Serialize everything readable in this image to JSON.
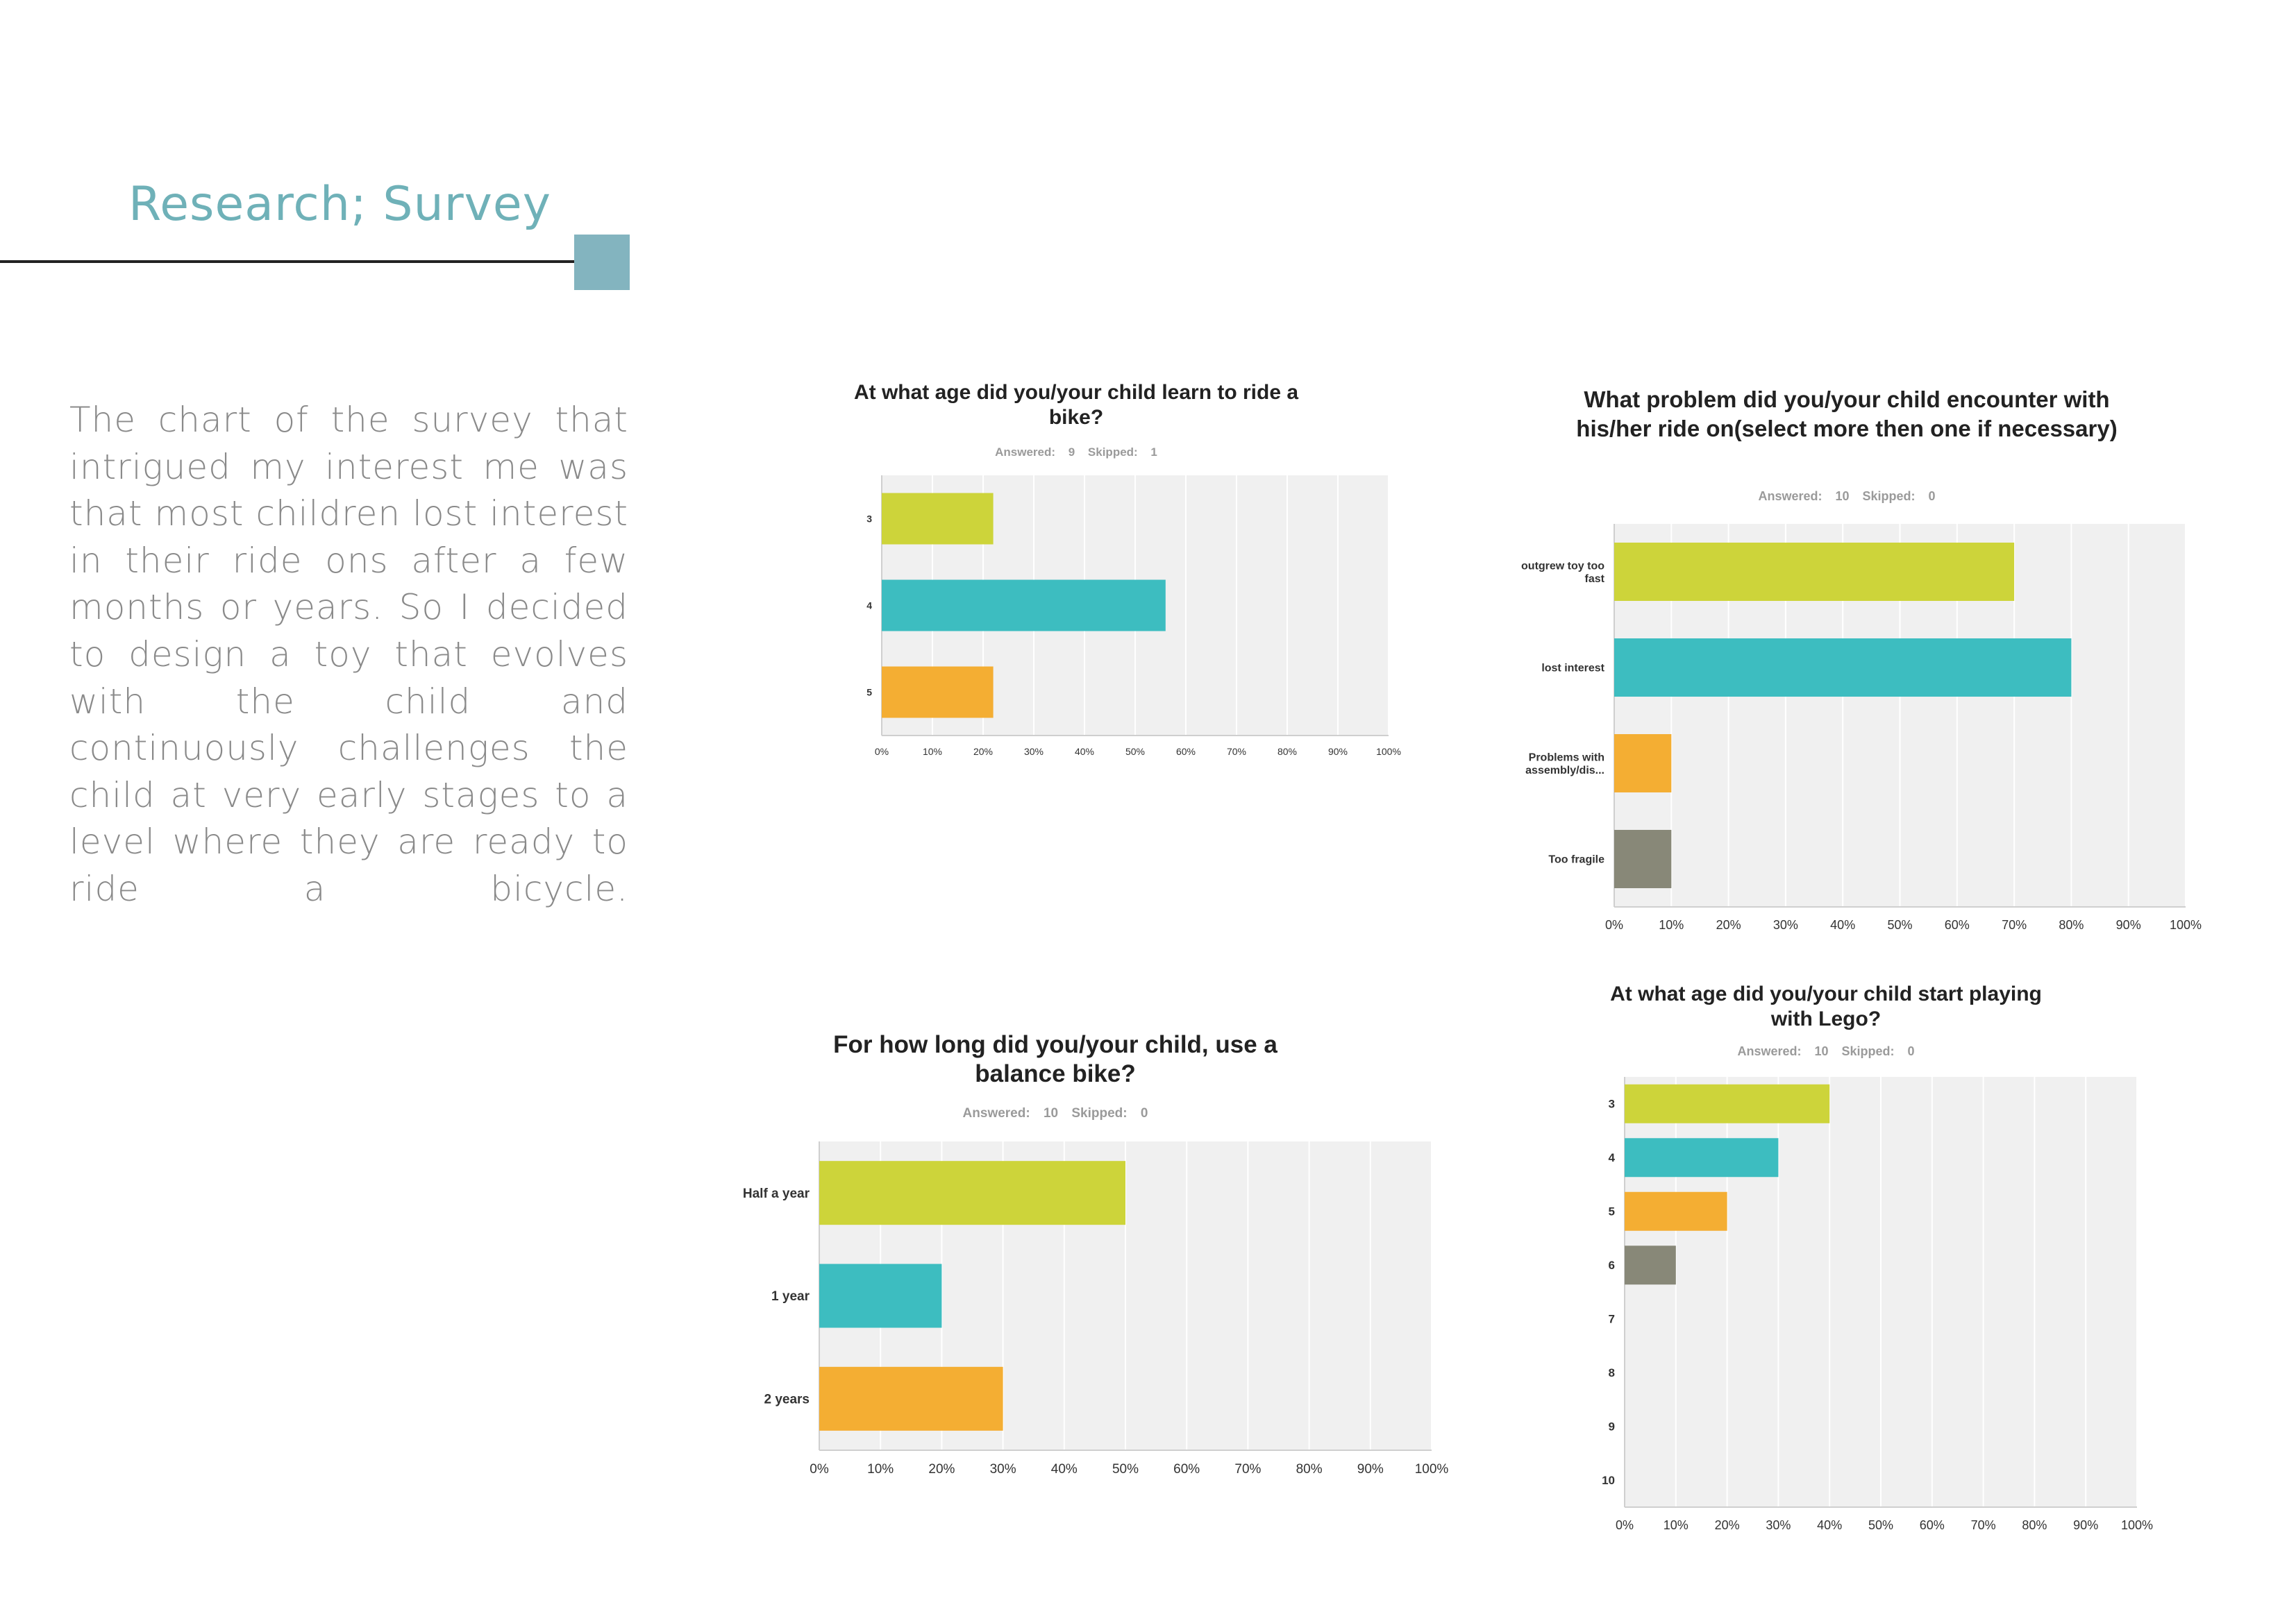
{
  "page": {
    "heading": "Research; Survey",
    "intro": "The chart of the survey that intrigued my interest me was that most children lost interest in their ride ons after a few months or years. So I decided to design a toy that evolves with the child and continuously challenges the child at very early stages to a level where they are ready to ride a bicycle."
  },
  "colors": {
    "heading": "#6fb1b8",
    "accent_square": "#83b4bf",
    "plot_bg": "#f0f0f0",
    "bar_colors": [
      "#cdd43a",
      "#3dbdc0",
      "#f4ae33",
      "#888878"
    ]
  },
  "chart_data": [
    {
      "type": "bar",
      "orientation": "horizontal",
      "title": "At what age did you/your child learn to ride a bike?",
      "subtitle": "Answered: 9    Skipped: 1",
      "categories": [
        "3",
        "4",
        "5"
      ],
      "values": [
        22,
        56,
        22
      ],
      "xlim": [
        0,
        100
      ],
      "x_ticks": [
        "0%",
        "10%",
        "20%",
        "30%",
        "40%",
        "50%",
        "60%",
        "70%",
        "80%",
        "90%",
        "100%"
      ],
      "grid": true
    },
    {
      "type": "bar",
      "orientation": "horizontal",
      "title": "What problem did you/your child encounter with his/her ride on(select more then one if necessary)",
      "subtitle": "Answered: 10    Skipped: 0",
      "categories": [
        "outgrew toy too fast",
        "lost interest",
        "Problems with assembly/dis...",
        "Too fragile"
      ],
      "values": [
        70,
        80,
        10,
        10
      ],
      "xlim": [
        0,
        100
      ],
      "x_ticks": [
        "0%",
        "10%",
        "20%",
        "30%",
        "40%",
        "50%",
        "60%",
        "70%",
        "80%",
        "90%",
        "100%"
      ],
      "grid": true
    },
    {
      "type": "bar",
      "orientation": "horizontal",
      "title": "For how long did you/your child, use a balance bike?",
      "subtitle": "Answered: 10    Skipped: 0",
      "categories": [
        "Half a year",
        "1 year",
        "2 years"
      ],
      "values": [
        50,
        20,
        30
      ],
      "xlim": [
        0,
        100
      ],
      "x_ticks": [
        "0%",
        "10%",
        "20%",
        "30%",
        "40%",
        "50%",
        "60%",
        "70%",
        "80%",
        "90%",
        "100%"
      ],
      "grid": true
    },
    {
      "type": "bar",
      "orientation": "horizontal",
      "title": "At what age did you/your child start playing with Lego?",
      "subtitle": "Answered: 10    Skipped: 0",
      "categories": [
        "3",
        "4",
        "5",
        "6",
        "7",
        "8",
        "9",
        "10"
      ],
      "values": [
        40,
        30,
        20,
        10,
        0,
        0,
        0,
        0
      ],
      "xlim": [
        0,
        100
      ],
      "x_ticks": [
        "0%",
        "10%",
        "20%",
        "30%",
        "40%",
        "50%",
        "60%",
        "70%",
        "80%",
        "90%",
        "100%"
      ],
      "grid": true
    }
  ]
}
